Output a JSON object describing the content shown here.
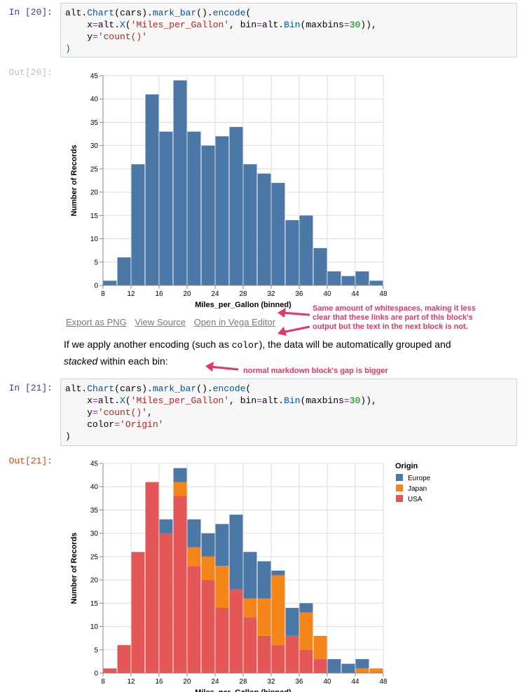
{
  "cell1": {
    "in_prompt": "In [20]:",
    "out_prompt": "Out[20]:",
    "code_lines": [
      [
        [
          "alt",
          ""
        ],
        [
          ".",
          ""
        ],
        [
          "Chart",
          "attr"
        ],
        [
          "(cars)",
          ""
        ],
        [
          ".",
          ""
        ],
        [
          "mark_bar",
          "attr"
        ],
        [
          "()",
          ""
        ],
        [
          ".",
          ""
        ],
        [
          "encode",
          "attr"
        ],
        [
          "(",
          ""
        ]
      ],
      [
        [
          "    x",
          ""
        ],
        [
          "=",
          "kw-op"
        ],
        [
          "alt",
          ""
        ],
        [
          ".",
          ""
        ],
        [
          "X",
          "attr"
        ],
        [
          "(",
          ""
        ],
        [
          "'Miles_per_Gallon'",
          "str"
        ],
        [
          ", bin",
          ""
        ],
        [
          "=",
          "kw-op"
        ],
        [
          "alt",
          ""
        ],
        [
          ".",
          ""
        ],
        [
          "Bin",
          "attr"
        ],
        [
          "(maxbins",
          ""
        ],
        [
          "=",
          "kw-op"
        ],
        [
          "30",
          "num"
        ],
        [
          ")),",
          ""
        ]
      ],
      [
        [
          "    y",
          ""
        ],
        [
          "=",
          "kw-op"
        ],
        [
          "'count()'",
          "str"
        ]
      ],
      [
        [
          ")",
          "num"
        ]
      ]
    ]
  },
  "chart1": {
    "type": "bar",
    "x": [
      8,
      10,
      12,
      14,
      16,
      18,
      20,
      22,
      24,
      26,
      28,
      30,
      32,
      34,
      36,
      38,
      40,
      42,
      44,
      46
    ],
    "bin_width": 2,
    "values": [
      1,
      6,
      26,
      41,
      33,
      44,
      33,
      30,
      32,
      34,
      26,
      24,
      22,
      14,
      15,
      8,
      3,
      2,
      3,
      1
    ],
    "xlim": [
      8,
      48
    ],
    "ylim": [
      0,
      45
    ],
    "xticks": [
      8,
      12,
      16,
      20,
      24,
      28,
      32,
      36,
      40,
      44,
      48
    ],
    "yticks": [
      0,
      5,
      10,
      15,
      20,
      25,
      30,
      35,
      40,
      45
    ],
    "xlabel": "Miles_per_Gallon (binned)",
    "ylabel": "Number of Records",
    "color": "#4c78a8",
    "grid": true
  },
  "links": {
    "export": "Export as PNG",
    "source": "View Source",
    "editor": "Open in Vega Editor"
  },
  "markdown": {
    "part1": "If we apply another encoding (such as ",
    "code": "color",
    "part2": "), the data will be automatically grouped and",
    "italic": "stacked",
    "part3": " within each bin:"
  },
  "annotations": {
    "note1_lines": [
      "Same amount of whitespaces, making it less",
      "clear that these links are part of this block's",
      "output but the text in the next block is not."
    ],
    "note2": "normal markdown block's gap is bigger",
    "color": "#e8336d"
  },
  "cell2": {
    "in_prompt": "In [21]:",
    "out_prompt": "Out[21]:",
    "code_lines": [
      [
        [
          "alt",
          ""
        ],
        [
          ".",
          ""
        ],
        [
          "Chart",
          "attr"
        ],
        [
          "(cars)",
          ""
        ],
        [
          ".",
          ""
        ],
        [
          "mark_bar",
          "attr"
        ],
        [
          "()",
          ""
        ],
        [
          ".",
          ""
        ],
        [
          "encode",
          "attr"
        ],
        [
          "(",
          ""
        ]
      ],
      [
        [
          "    x",
          ""
        ],
        [
          "=",
          "kw-op"
        ],
        [
          "alt",
          ""
        ],
        [
          ".",
          ""
        ],
        [
          "X",
          "attr"
        ],
        [
          "(",
          ""
        ],
        [
          "'Miles_per_Gallon'",
          "str"
        ],
        [
          ", bin",
          ""
        ],
        [
          "=",
          "kw-op"
        ],
        [
          "alt",
          ""
        ],
        [
          ".",
          ""
        ],
        [
          "Bin",
          "attr"
        ],
        [
          "(maxbins",
          ""
        ],
        [
          "=",
          "kw-op"
        ],
        [
          "30",
          "num"
        ],
        [
          ")),",
          ""
        ]
      ],
      [
        [
          "    y",
          ""
        ],
        [
          "=",
          "kw-op"
        ],
        [
          "'count()'",
          "str"
        ],
        [
          ",",
          ""
        ]
      ],
      [
        [
          "    color",
          ""
        ],
        [
          "=",
          "kw-op"
        ],
        [
          "'Origin'",
          "str"
        ]
      ],
      [
        [
          ")",
          ""
        ]
      ]
    ]
  },
  "chart_data": [
    {
      "type": "bar",
      "x": [
        8,
        10,
        12,
        14,
        16,
        18,
        20,
        22,
        24,
        26,
        28,
        30,
        32,
        34,
        36,
        38,
        40,
        42,
        44,
        46
      ],
      "values": [
        1,
        6,
        26,
        41,
        33,
        44,
        33,
        30,
        32,
        34,
        26,
        24,
        22,
        14,
        15,
        8,
        3,
        2,
        3,
        1
      ],
      "xlabel": "Miles_per_Gallon (binned)",
      "ylabel": "Number of Records",
      "xlim": [
        8,
        48
      ],
      "ylim": [
        0,
        45
      ]
    },
    {
      "type": "bar",
      "stacked": true,
      "x": [
        8,
        10,
        12,
        14,
        16,
        18,
        20,
        22,
        24,
        26,
        28,
        30,
        32,
        34,
        36,
        38,
        40,
        42,
        44,
        46
      ],
      "bin_width": 2,
      "series": [
        {
          "name": "USA",
          "color": "#e45756",
          "values": [
            1,
            6,
            26,
            41,
            30,
            38,
            23,
            20,
            14,
            18,
            12,
            8,
            6,
            8,
            5,
            3,
            0,
            0,
            0,
            0
          ]
        },
        {
          "name": "Japan",
          "color": "#f58518",
          "values": [
            0,
            0,
            0,
            0,
            0,
            3,
            4,
            5,
            9,
            0,
            4,
            8,
            15,
            0,
            8,
            5,
            0,
            0,
            1,
            1
          ]
        },
        {
          "name": "Europe",
          "color": "#4c78a8",
          "values": [
            0,
            0,
            0,
            0,
            3,
            3,
            6,
            5,
            9,
            16,
            10,
            8,
            1,
            6,
            2,
            0,
            3,
            2,
            2,
            0
          ]
        }
      ],
      "legend_title": "Origin",
      "legend_order": [
        "Europe",
        "Japan",
        "USA"
      ],
      "legend_placement": "right",
      "xlabel": "Miles_per_Gallon (binned)",
      "ylabel": "Number of Records",
      "xlim": [
        8,
        48
      ],
      "ylim": [
        0,
        45
      ],
      "xticks": [
        8,
        12,
        16,
        20,
        24,
        28,
        32,
        36,
        40,
        44,
        48
      ],
      "yticks": [
        0,
        5,
        10,
        15,
        20,
        25,
        30,
        35,
        40,
        45
      ]
    }
  ]
}
